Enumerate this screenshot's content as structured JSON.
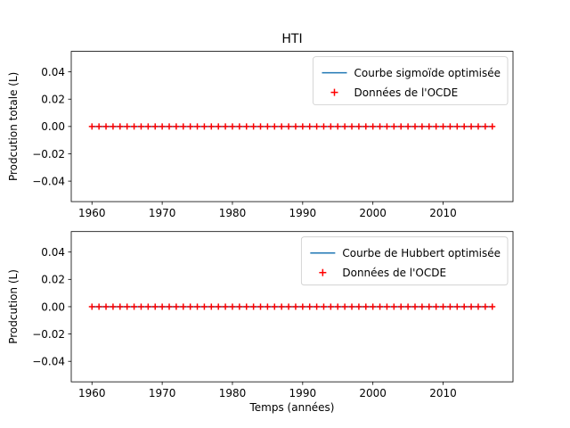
{
  "figure": {
    "title": "HTI"
  },
  "colors": {
    "curve": "#1f77b4",
    "marker": "#ff0000",
    "axes": "#000000",
    "legend_border": "#cccccc"
  },
  "chart_data": [
    {
      "type": "line",
      "title": "HTI",
      "xlabel": "",
      "ylabel": "Prodcution totale (L)",
      "xlim": [
        1957.05,
        2019.95
      ],
      "ylim": [
        -0.055,
        0.055
      ],
      "x_ticks": [
        1960,
        1970,
        1980,
        1990,
        2000,
        2010
      ],
      "y_ticks": [
        -0.04,
        -0.02,
        0.0,
        0.02,
        0.04
      ],
      "y_tick_labels": [
        "−0.04",
        "−0.02",
        "0.00",
        "0.02",
        "0.04"
      ],
      "grid": false,
      "legend_position": "upper right",
      "x_start": 1960,
      "x_end": 2017,
      "series": [
        {
          "name": "Courbe sigmoïde optimisée",
          "kind": "line",
          "color": "#1f77b4",
          "constant_value": 0.0
        },
        {
          "name": "Données de l'OCDE",
          "kind": "scatter",
          "marker": "plus",
          "color": "#ff0000",
          "constant_value": 0.0
        }
      ]
    },
    {
      "type": "line",
      "title": "",
      "xlabel": "Temps (années)",
      "ylabel": "Prodcution (L)",
      "xlim": [
        1957.05,
        2019.95
      ],
      "ylim": [
        -0.055,
        0.055
      ],
      "x_ticks": [
        1960,
        1970,
        1980,
        1990,
        2000,
        2010
      ],
      "y_ticks": [
        -0.04,
        -0.02,
        0.0,
        0.02,
        0.04
      ],
      "y_tick_labels": [
        "−0.04",
        "−0.02",
        "0.00",
        "0.02",
        "0.04"
      ],
      "grid": false,
      "legend_position": "upper right",
      "x_start": 1960,
      "x_end": 2017,
      "series": [
        {
          "name": "Courbe de Hubbert optimisée",
          "kind": "line",
          "color": "#1f77b4",
          "constant_value": 0.0
        },
        {
          "name": "Données de l'OCDE",
          "kind": "scatter",
          "marker": "plus",
          "color": "#ff0000",
          "constant_value": 0.0
        }
      ]
    }
  ]
}
